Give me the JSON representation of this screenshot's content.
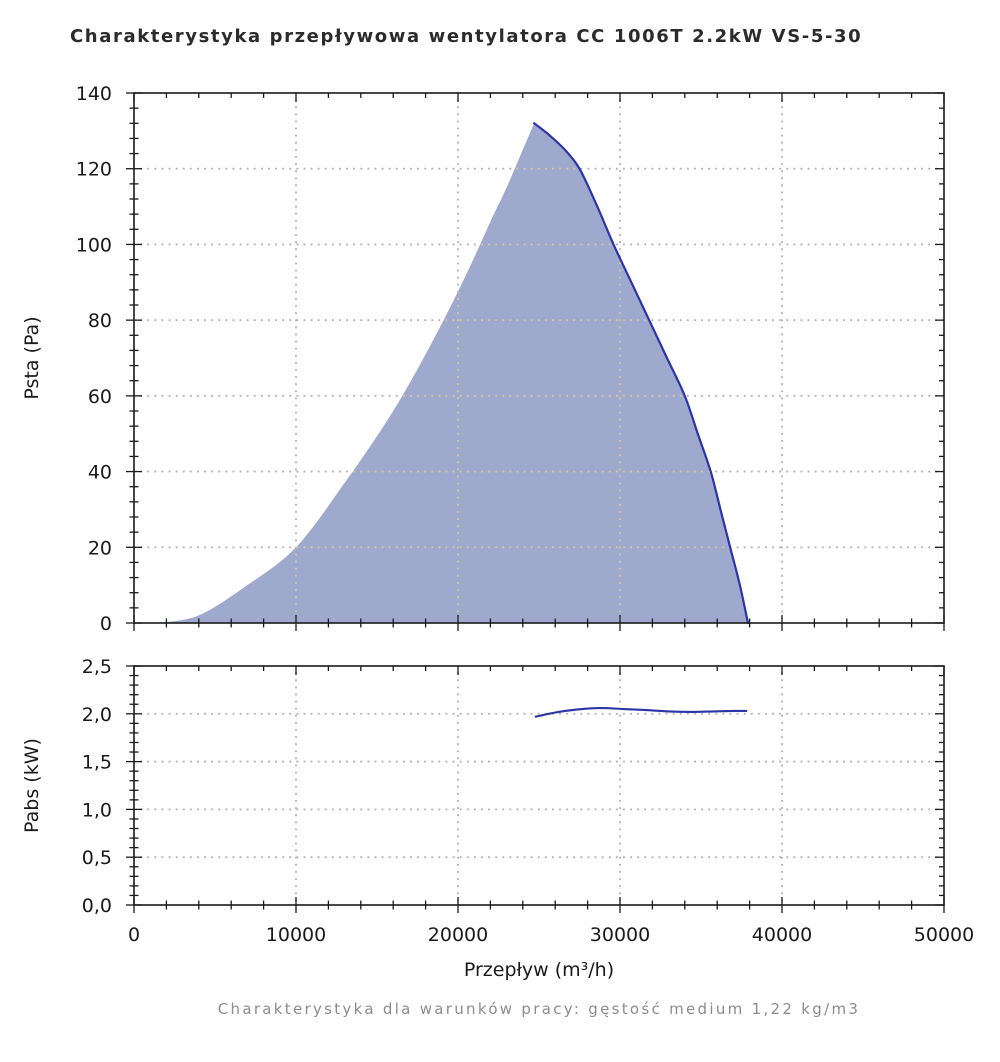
{
  "title": "Charakterystyka przepływowa wentylatora CC 1006T 2.2kW VS-5-30",
  "caption": "Charakterystyka dla warunków pracy: gęstość medium 1,22 kg/m3",
  "colors": {
    "curve": "#2b35a6",
    "area_fill": "#9fa8cd",
    "grid": "#b4b4b4",
    "grid_on_area": "#cdc9a3",
    "axis": "#1a1a1a",
    "title_text": "#2b2b2b",
    "caption_text": "#8c8c8c"
  },
  "x_axis": {
    "label": "Przepływ (m³/h)",
    "min": 0,
    "max": 50000,
    "major_tick": 10000,
    "minor_tick": 2000,
    "tick_labels": [
      "0",
      "10000",
      "20000",
      "30000",
      "40000",
      "50000"
    ],
    "grid_values": [
      10000,
      20000,
      30000,
      40000
    ]
  },
  "chart_data": [
    {
      "type": "area",
      "ylabel": "Psta (Pa)",
      "ylim": [
        0,
        140
      ],
      "y_major_tick": 20,
      "y_minor_tick": 4,
      "y_tick_labels": [
        "0",
        "20",
        "40",
        "60",
        "80",
        "100",
        "120",
        "140"
      ],
      "y_grid_values": [
        20,
        40,
        60,
        80,
        100,
        120
      ],
      "series": [
        {
          "name": "Psta rising edge (fill boundary, unstroked)",
          "points": [
            [
              1500,
              0
            ],
            [
              4000,
              2
            ],
            [
              7000,
              10
            ],
            [
              10000,
              20
            ],
            [
              13000,
              37
            ],
            [
              16000,
              56
            ],
            [
              18500,
              75
            ],
            [
              20500,
              92
            ],
            [
              22000,
              106
            ],
            [
              23000,
              115
            ],
            [
              24000,
              125
            ],
            [
              24700,
              132
            ]
          ]
        },
        {
          "name": "Psta falling edge (stroked)",
          "points": [
            [
              24700,
              132
            ],
            [
              25600,
              129
            ],
            [
              26600,
              125
            ],
            [
              27500,
              120
            ],
            [
              28600,
              110
            ],
            [
              29600,
              100
            ],
            [
              30700,
              90
            ],
            [
              31800,
              80
            ],
            [
              32900,
              70
            ],
            [
              34000,
              60
            ],
            [
              34800,
              50
            ],
            [
              35600,
              40
            ],
            [
              36200,
              30
            ],
            [
              36800,
              20
            ],
            [
              37400,
              10
            ],
            [
              37900,
              0
            ]
          ]
        }
      ]
    },
    {
      "type": "line",
      "ylabel": "Pabs (kW)",
      "ylim": [
        0,
        2.5
      ],
      "y_major_tick": 0.5,
      "y_minor_tick": 0.1,
      "y_tick_labels": [
        "0,0",
        "0,5",
        "1,0",
        "1,5",
        "2,0",
        "2,5"
      ],
      "y_grid_values": [
        0.5,
        1.0,
        1.5,
        2.0
      ],
      "series": [
        {
          "name": "Pabs",
          "points": [
            [
              24800,
              1.97
            ],
            [
              25600,
              2.0
            ],
            [
              26600,
              2.03
            ],
            [
              28000,
              2.055
            ],
            [
              29000,
              2.06
            ],
            [
              30200,
              2.05
            ],
            [
              31500,
              2.04
            ],
            [
              33000,
              2.025
            ],
            [
              34500,
              2.02
            ],
            [
              35800,
              2.025
            ],
            [
              37000,
              2.03
            ],
            [
              37800,
              2.03
            ]
          ]
        }
      ]
    }
  ]
}
